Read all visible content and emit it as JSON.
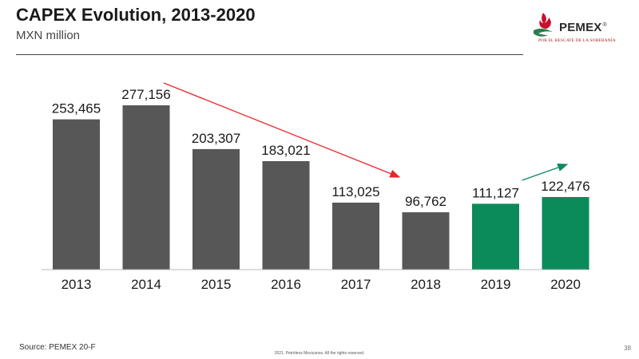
{
  "header": {
    "title": "CAPEX Evolution, 2013-2020",
    "subtitle": "MXN million"
  },
  "logo": {
    "word": "PEMEX",
    "registered": "®",
    "tagline": "POR EL RESCATE DE LA SOBERANÍA",
    "icon": "pemex-eagle-flame-icon",
    "colors": {
      "flame": "#c8102e",
      "eagle": "#2e7d4f"
    }
  },
  "chart_data": {
    "type": "bar",
    "categories": [
      "2013",
      "2014",
      "2015",
      "2016",
      "2017",
      "2018",
      "2019",
      "2020"
    ],
    "values": [
      253465,
      277156,
      203307,
      183021,
      113025,
      96762,
      111127,
      122476
    ],
    "value_labels": [
      "253,465",
      "277,156",
      "203,307",
      "183,021",
      "113,025",
      "96,762",
      "111,127",
      "122,476"
    ],
    "bar_colors": [
      "#575757",
      "#575757",
      "#575757",
      "#575757",
      "#575757",
      "#575757",
      "#0b8a5a",
      "#0b8a5a"
    ],
    "title": "",
    "xlabel": "",
    "ylabel": "",
    "ylim": [
      0,
      300000
    ],
    "grid": false,
    "legend": "none",
    "annotations": [
      {
        "type": "arrow",
        "color": "#e8262a",
        "from_category": "2015",
        "to_category": "2018",
        "meaning": "downward trend"
      },
      {
        "type": "arrow",
        "color": "#0b8a5a",
        "from_category": "2018",
        "to_category": "2020",
        "meaning": "upward trend"
      }
    ]
  },
  "footer": {
    "source": "Source: PEMEX 20-F",
    "copyright": "2021. Petróleos Mexicanos. All the rights reserved.",
    "page_number": "38"
  }
}
